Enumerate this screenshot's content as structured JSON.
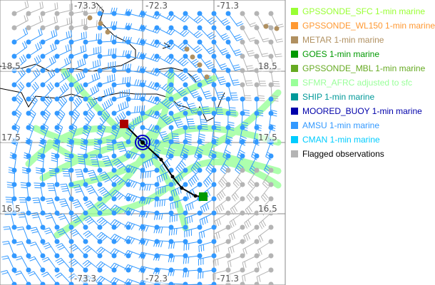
{
  "map": {
    "lon_labels": [
      "-73.3",
      "-72.3",
      "-71.3"
    ],
    "lat_labels": [
      "18.5",
      "17.5",
      "16.5"
    ],
    "storm_center_lonlat": [
      -72.3,
      17.5
    ],
    "track": [
      [
        -72.56,
        17.76
      ],
      [
        -72.3,
        17.5
      ],
      [
        -72.04,
        17.26
      ],
      [
        -71.88,
        17.02
      ],
      [
        -71.75,
        16.86
      ],
      [
        -71.56,
        16.75
      ],
      [
        -71.45,
        16.74
      ]
    ],
    "colors": {
      "amsu": "#3399ff",
      "flagged": "#b4b4b4",
      "sfmr": "#99ff99",
      "metar": "#b09060",
      "track": "#000000",
      "start": "#aa0000",
      "end": "#009900",
      "center": "#0000cc"
    }
  },
  "legend": [
    {
      "label": "GPSSONDE_SFC 1-min marine",
      "color": "#99ff33"
    },
    {
      "label": "GPSSONDE_WL150 1-min marine",
      "color": "#ff9933"
    },
    {
      "label": "METAR 1-min marine",
      "color": "#b09060"
    },
    {
      "label": "GOES 1-min marine",
      "color": "#009900"
    },
    {
      "label": "GPSSONDE_MBL 1-min marine",
      "color": "#66aa22"
    },
    {
      "label": "SFMR_AFRC adjusted to sfc",
      "color": "#99ff99"
    },
    {
      "label": "SHIP 1-min marine",
      "color": "#009999"
    },
    {
      "label": "MOORED_BUOY 1-min marine",
      "color": "#0000aa"
    },
    {
      "label": "AMSU 1-min marine",
      "color": "#3399ff"
    },
    {
      "label": "CMAN 1-min marine",
      "color": "#00ccff"
    },
    {
      "label": "Flagged observations",
      "color": "#b4b4b4",
      "text_color": "#000000"
    }
  ]
}
